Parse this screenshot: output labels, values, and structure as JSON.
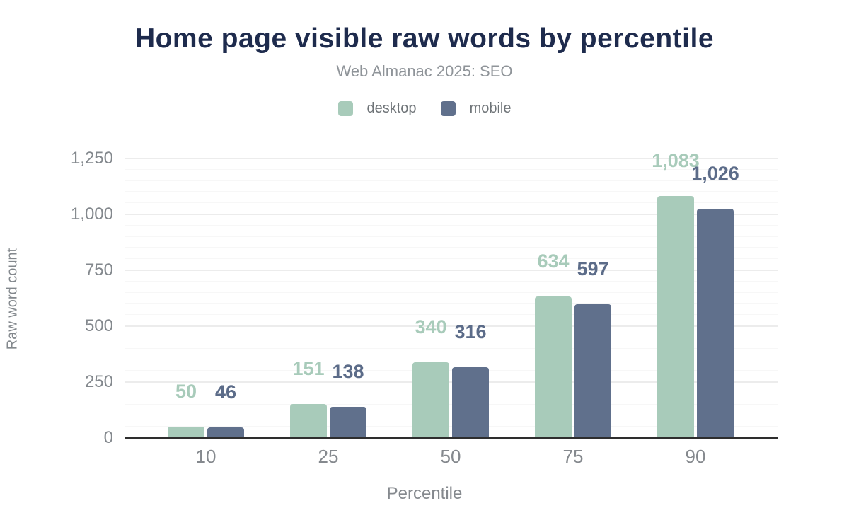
{
  "chart_data": {
    "type": "bar",
    "title": "Home page visible raw words by percentile",
    "subtitle": "Web Almanac 2025: SEO",
    "xlabel": "Percentile",
    "ylabel": "Raw word count",
    "categories": [
      "10",
      "25",
      "50",
      "75",
      "90"
    ],
    "series": [
      {
        "name": "desktop",
        "color": "#a8cbba",
        "label_color": "#a8cbba",
        "values": [
          50,
          151,
          340,
          634,
          1083
        ],
        "labels": [
          "50",
          "151",
          "340",
          "634",
          "1,083"
        ]
      },
      {
        "name": "mobile",
        "color": "#60708c",
        "label_color": "#5c6c89",
        "values": [
          46,
          138,
          316,
          597,
          1026
        ],
        "labels": [
          "46",
          "138",
          "316",
          "597",
          "1,026"
        ]
      }
    ],
    "ylim": [
      0,
      1250
    ],
    "yticks": [
      0,
      250,
      500,
      750,
      1000,
      1250
    ],
    "ytick_labels": [
      "0",
      "250",
      "500",
      "750",
      "1,000",
      "1,250"
    ],
    "grid": {
      "major_every": 250,
      "minor_every": 50,
      "visible": true
    },
    "legend_position": "top",
    "bar_corner_radius": 4
  }
}
